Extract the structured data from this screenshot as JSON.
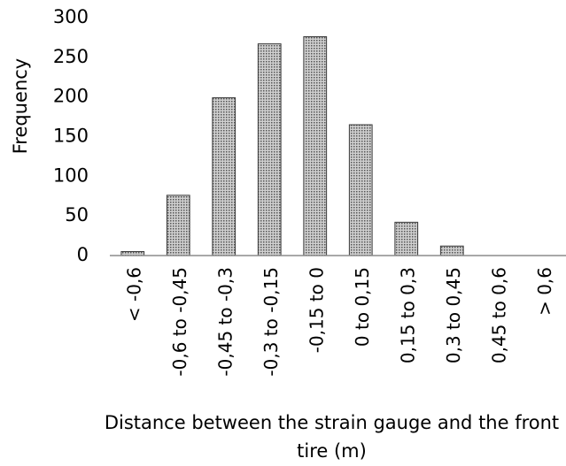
{
  "chart_data": {
    "type": "bar",
    "xlabel": "Distance between the strain gauge and the front tire (m)",
    "ylabel": "Frequency",
    "categories": [
      "< -0,6",
      "-0,6 to -0,45",
      "-0,45 to -0,3",
      "-0,3 to -0,15",
      "-0,15 to 0",
      "0 to 0,15",
      "0,15 to 0,3",
      "0,3 to 0,45",
      "0,45 to 0,6",
      "> 0,6"
    ],
    "values": [
      5,
      76,
      199,
      267,
      276,
      165,
      42,
      12,
      0,
      0
    ],
    "color": "#a6a6a6",
    "ylim": [
      0,
      300
    ],
    "yticks": [
      0,
      50,
      100,
      150,
      200,
      250,
      300
    ],
    "grid": false
  }
}
